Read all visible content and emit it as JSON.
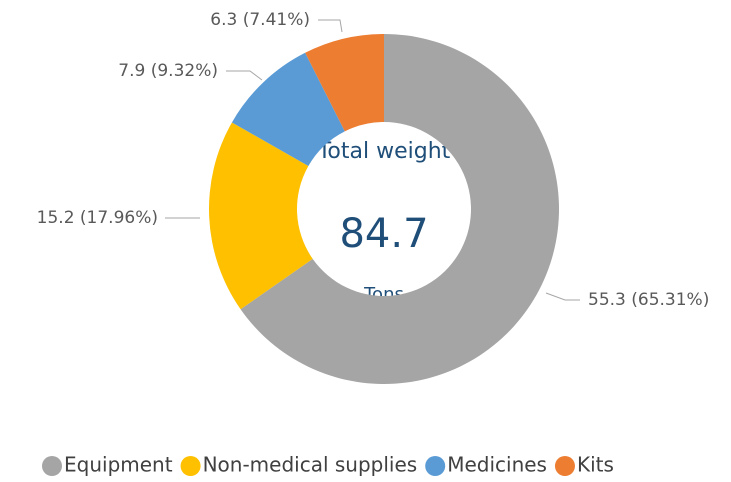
{
  "chart_data": {
    "type": "donut",
    "categories": [
      "Equipment",
      "Non-medical supplies",
      "Medicines",
      "Kits"
    ],
    "values": [
      55.3,
      15.2,
      7.9,
      6.3
    ],
    "value_labels": [
      "55.3 (65.31%)",
      "15.2 (17.96%)",
      "7.9 (9.32%)",
      "6.3 (7.41%)"
    ],
    "colors": [
      "#a5a5a5",
      "#ffc000",
      "#5b9bd5",
      "#ed7d31"
    ],
    "center_title": "Total weight",
    "center_value": 84.7,
    "center_unit": "Tons",
    "legend": "bottom"
  }
}
